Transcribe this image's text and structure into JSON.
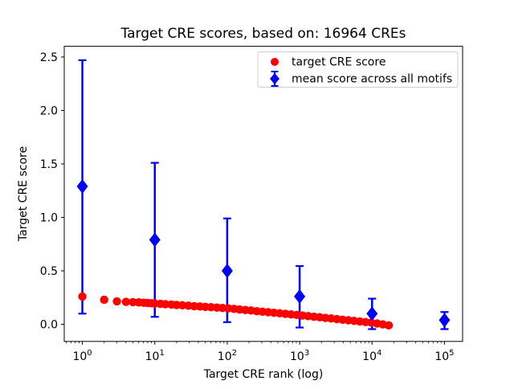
{
  "figure": {
    "background": "#ffffff",
    "axis_color": "#000000",
    "legend_border_color": "#cccccc"
  },
  "chart_data": {
    "type": "scatter",
    "title": "Target CRE scores, based on: 16964 CREs",
    "xlabel": "Target CRE rank (log)",
    "ylabel": "Target CRE score",
    "x_scale": "log",
    "xlim_log10": [
      -0.25,
      5.25
    ],
    "ylim": [
      -0.16,
      2.6
    ],
    "x_ticks_exponents": [
      0,
      1,
      2,
      3,
      4,
      5
    ],
    "y_ticks": [
      "0.0",
      "0.5",
      "1.0",
      "1.5",
      "2.0",
      "2.5"
    ],
    "grid": false,
    "legend": {
      "position": "upper right"
    },
    "series": [
      {
        "name": "target CRE score",
        "type": "scatter",
        "marker": "circle",
        "color": "#ff0000",
        "x": [
          1,
          2,
          3,
          4,
          5,
          6,
          7,
          8,
          9,
          10,
          12,
          14,
          17,
          20,
          24,
          29,
          35,
          42,
          50,
          60,
          72,
          86,
          103,
          124,
          148,
          178,
          213,
          256,
          307,
          368,
          441,
          529,
          635,
          761,
          913,
          1096,
          1315,
          1577,
          1892,
          2270,
          2723,
          3267,
          3920,
          4703,
          5643,
          6770,
          8123,
          9746,
          11694,
          14030,
          16964
        ],
        "y": [
          0.26,
          0.23,
          0.215,
          0.21,
          0.207,
          0.205,
          0.202,
          0.2,
          0.197,
          0.195,
          0.191,
          0.188,
          0.185,
          0.181,
          0.178,
          0.174,
          0.17,
          0.167,
          0.163,
          0.16,
          0.156,
          0.153,
          0.149,
          0.144,
          0.139,
          0.134,
          0.129,
          0.123,
          0.118,
          0.113,
          0.108,
          0.103,
          0.098,
          0.093,
          0.088,
          0.082,
          0.077,
          0.071,
          0.066,
          0.06,
          0.055,
          0.049,
          0.043,
          0.038,
          0.032,
          0.027,
          0.021,
          0.016,
          0.008,
          0.0,
          -0.01
        ]
      },
      {
        "name": "mean score across all motifs",
        "type": "errorbar",
        "marker": "diamond",
        "color": "#0000ff",
        "x": [
          1,
          10,
          100,
          1000,
          10000,
          100000
        ],
        "y": [
          1.29,
          0.79,
          0.5,
          0.26,
          0.1,
          0.04
        ],
        "err_lo": [
          0.1,
          0.07,
          0.02,
          -0.03,
          -0.045,
          -0.045
        ],
        "err_hi": [
          2.47,
          1.51,
          0.99,
          0.545,
          0.24,
          0.115
        ]
      }
    ]
  }
}
